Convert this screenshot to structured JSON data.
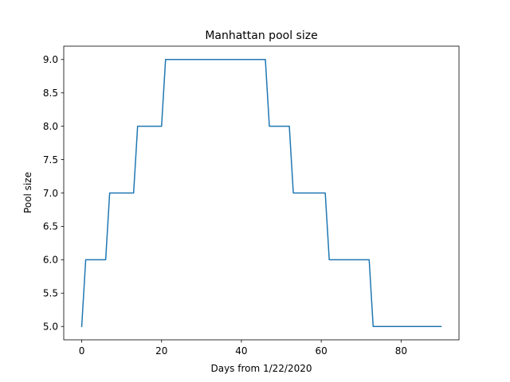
{
  "chart_data": {
    "type": "line",
    "title": "Manhattan pool size",
    "xlabel": "Days from 1/22/2020",
    "ylabel": "Pool size",
    "xlim": [
      -4.5,
      94.5
    ],
    "ylim": [
      4.8,
      9.2
    ],
    "xticks": [
      0,
      20,
      40,
      60,
      80
    ],
    "xtick_labels": [
      "0",
      "20",
      "40",
      "60",
      "80"
    ],
    "yticks": [
      5.0,
      5.5,
      6.0,
      6.5,
      7.0,
      7.5,
      8.0,
      8.5,
      9.0
    ],
    "ytick_labels": [
      "5.0",
      "5.5",
      "6.0",
      "6.5",
      "7.0",
      "7.5",
      "8.0",
      "8.5",
      "9.0"
    ],
    "grid": false,
    "legend": "none",
    "line_color": "#1f77b4",
    "series": [
      {
        "x": [
          0,
          1,
          6,
          7,
          13,
          14,
          20,
          21,
          46,
          47,
          52,
          53,
          61,
          62,
          72,
          73,
          90
        ],
        "values": [
          5,
          6,
          6,
          7,
          7,
          8,
          8,
          9,
          9,
          8,
          8,
          7,
          7,
          6,
          6,
          5,
          5
        ]
      }
    ]
  }
}
